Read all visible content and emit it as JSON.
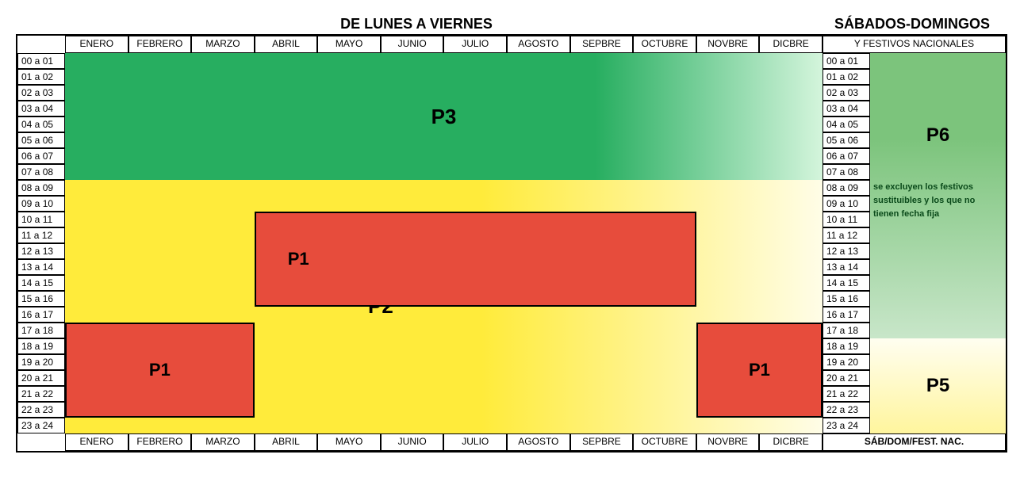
{
  "titles": {
    "weekdays": "DE  LUNES  A  VIERNES",
    "weekends": "SÁBADOS-DOMINGOS"
  },
  "months": [
    "ENERO",
    "FEBRERO",
    "MARZO",
    "ABRIL",
    "MAYO",
    "JUNIO",
    "JULIO",
    "AGOSTO",
    "SEPBRE",
    "OCTUBRE",
    "NOVBRE",
    "DICBRE"
  ],
  "hours": [
    "00 a 01",
    "01 a 02",
    "02 a 03",
    "03 a 04",
    "04 a 05",
    "05 a 06",
    "06 a 07",
    "07 a 08",
    "08 a 09",
    "09 a 10",
    "10 a 11",
    "11 a 12",
    "12 a 13",
    "13 a 14",
    "14 a 15",
    "15 a 16",
    "16 a 17",
    "17 a 18",
    "18 a 19",
    "19 a 20",
    "20 a 21",
    "21 a 22",
    "22 a 23",
    "23 a 24"
  ],
  "rightHeader": "Y FESTIVOS NACIONALES",
  "rightFooter": "SÁB/DOM/FEST. NAC.",
  "note": "se excluyen los festivos sustituibles y los que no tienen fecha fija",
  "colors": {
    "p1": "#e74c3c",
    "p2": "#ffeb3b",
    "p2fade": "#fffde7",
    "p3": "#27ae60",
    "p3fade": "#d4f5dc",
    "p5": "#fff59d",
    "p5fade": "#fffef0",
    "p6": "#7cc47c",
    "p6fade": "#c8e6c9",
    "border": "#000000",
    "text": "#000000"
  },
  "layout": {
    "hourHeight": 20,
    "totalHours": 24,
    "monthCount": 12
  },
  "zones": {
    "p3": {
      "label": "P3",
      "startHour": 0,
      "endHour": 8,
      "startMonth": 0,
      "endMonth": 12,
      "fontSize": 26
    },
    "p2": {
      "label": "P2",
      "startHour": 8,
      "endHour": 24,
      "startMonth": 0,
      "endMonth": 12,
      "fontSize": 26,
      "labelYOffset": 0.45
    },
    "p1_left": {
      "label": "P1",
      "startHour": 17,
      "endHour": 23,
      "startMonth": 0,
      "endMonth": 3,
      "fontSize": 22
    },
    "p1_mid": {
      "label": "P1",
      "startHour": 10,
      "endHour": 16,
      "startMonth": 3,
      "endMonth": 10,
      "fontSize": 22
    },
    "p1_right": {
      "label": "P1",
      "startHour": 17,
      "endHour": 23,
      "startMonth": 10,
      "endMonth": 12,
      "fontSize": 22
    }
  },
  "rightZones": {
    "p6": {
      "label": "P6",
      "startHour": 0,
      "endHour": 18,
      "fontSize": 24
    },
    "p5": {
      "label": "P5",
      "startHour": 18,
      "endHour": 24,
      "fontSize": 24
    }
  }
}
